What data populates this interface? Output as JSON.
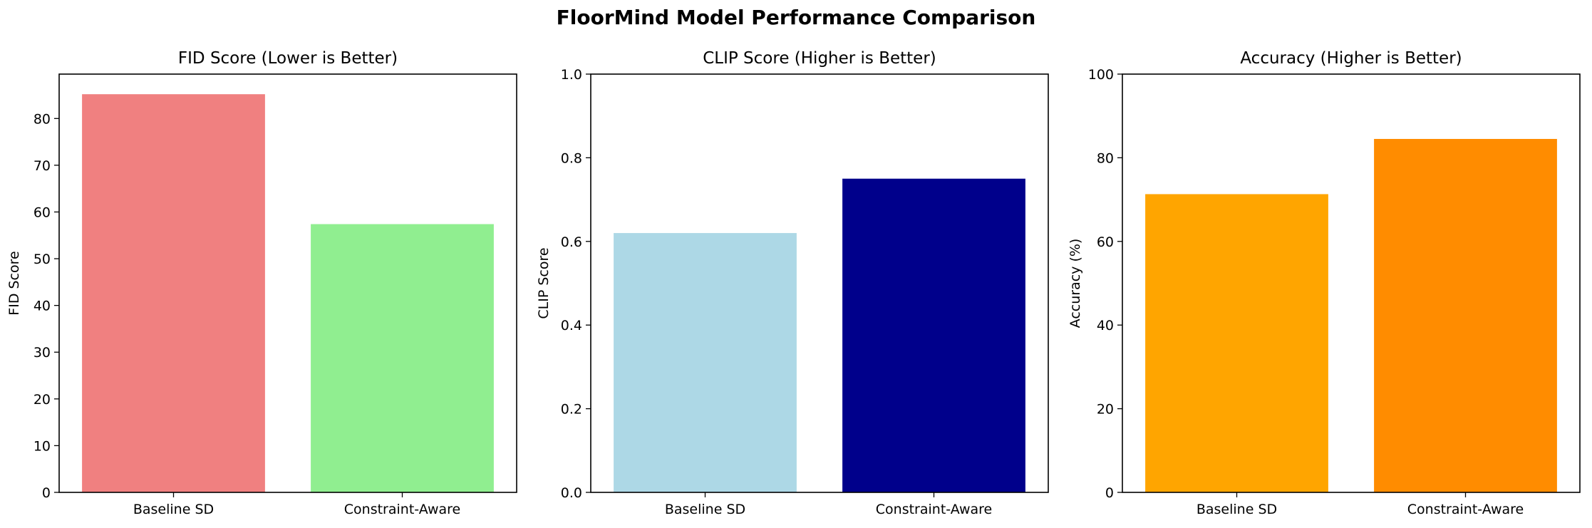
{
  "figure_title": "FloorMind Model Performance Comparison",
  "chart_data": [
    {
      "type": "bar",
      "title": "FID Score (Lower is Better)",
      "xlabel": "",
      "ylabel": "FID Score",
      "categories": [
        "Baseline SD",
        "Constraint-Aware"
      ],
      "values": [
        85.2,
        57.4
      ],
      "colors": [
        "#F08080",
        "#90EE90"
      ],
      "ylim": [
        0,
        89.5
      ],
      "yticks": [
        0,
        10,
        20,
        30,
        40,
        50,
        60,
        70,
        80
      ],
      "ytick_labels": [
        "0",
        "10",
        "20",
        "30",
        "40",
        "50",
        "60",
        "70",
        "80"
      ],
      "grid": false
    },
    {
      "type": "bar",
      "title": "CLIP Score (Higher is Better)",
      "xlabel": "",
      "ylabel": "CLIP Score",
      "categories": [
        "Baseline SD",
        "Constraint-Aware"
      ],
      "values": [
        0.62,
        0.75
      ],
      "colors": [
        "#ADD8E6",
        "#00008B"
      ],
      "ylim": [
        0,
        1.0
      ],
      "yticks": [
        0,
        0.2,
        0.4,
        0.6,
        0.8,
        1.0
      ],
      "ytick_labels": [
        "0.0",
        "0.2",
        "0.4",
        "0.6",
        "0.8",
        "1.0"
      ],
      "grid": false
    },
    {
      "type": "bar",
      "title": "Accuracy (Higher is Better)",
      "xlabel": "",
      "ylabel": "Accuracy (%)",
      "categories": [
        "Baseline SD",
        "Constraint-Aware"
      ],
      "values": [
        71.3,
        84.5
      ],
      "colors": [
        "#FFA500",
        "#FF8C00"
      ],
      "ylim": [
        0,
        100
      ],
      "yticks": [
        0,
        20,
        40,
        60,
        80,
        100
      ],
      "ytick_labels": [
        "0",
        "20",
        "40",
        "60",
        "80",
        "100"
      ],
      "grid": false
    }
  ]
}
